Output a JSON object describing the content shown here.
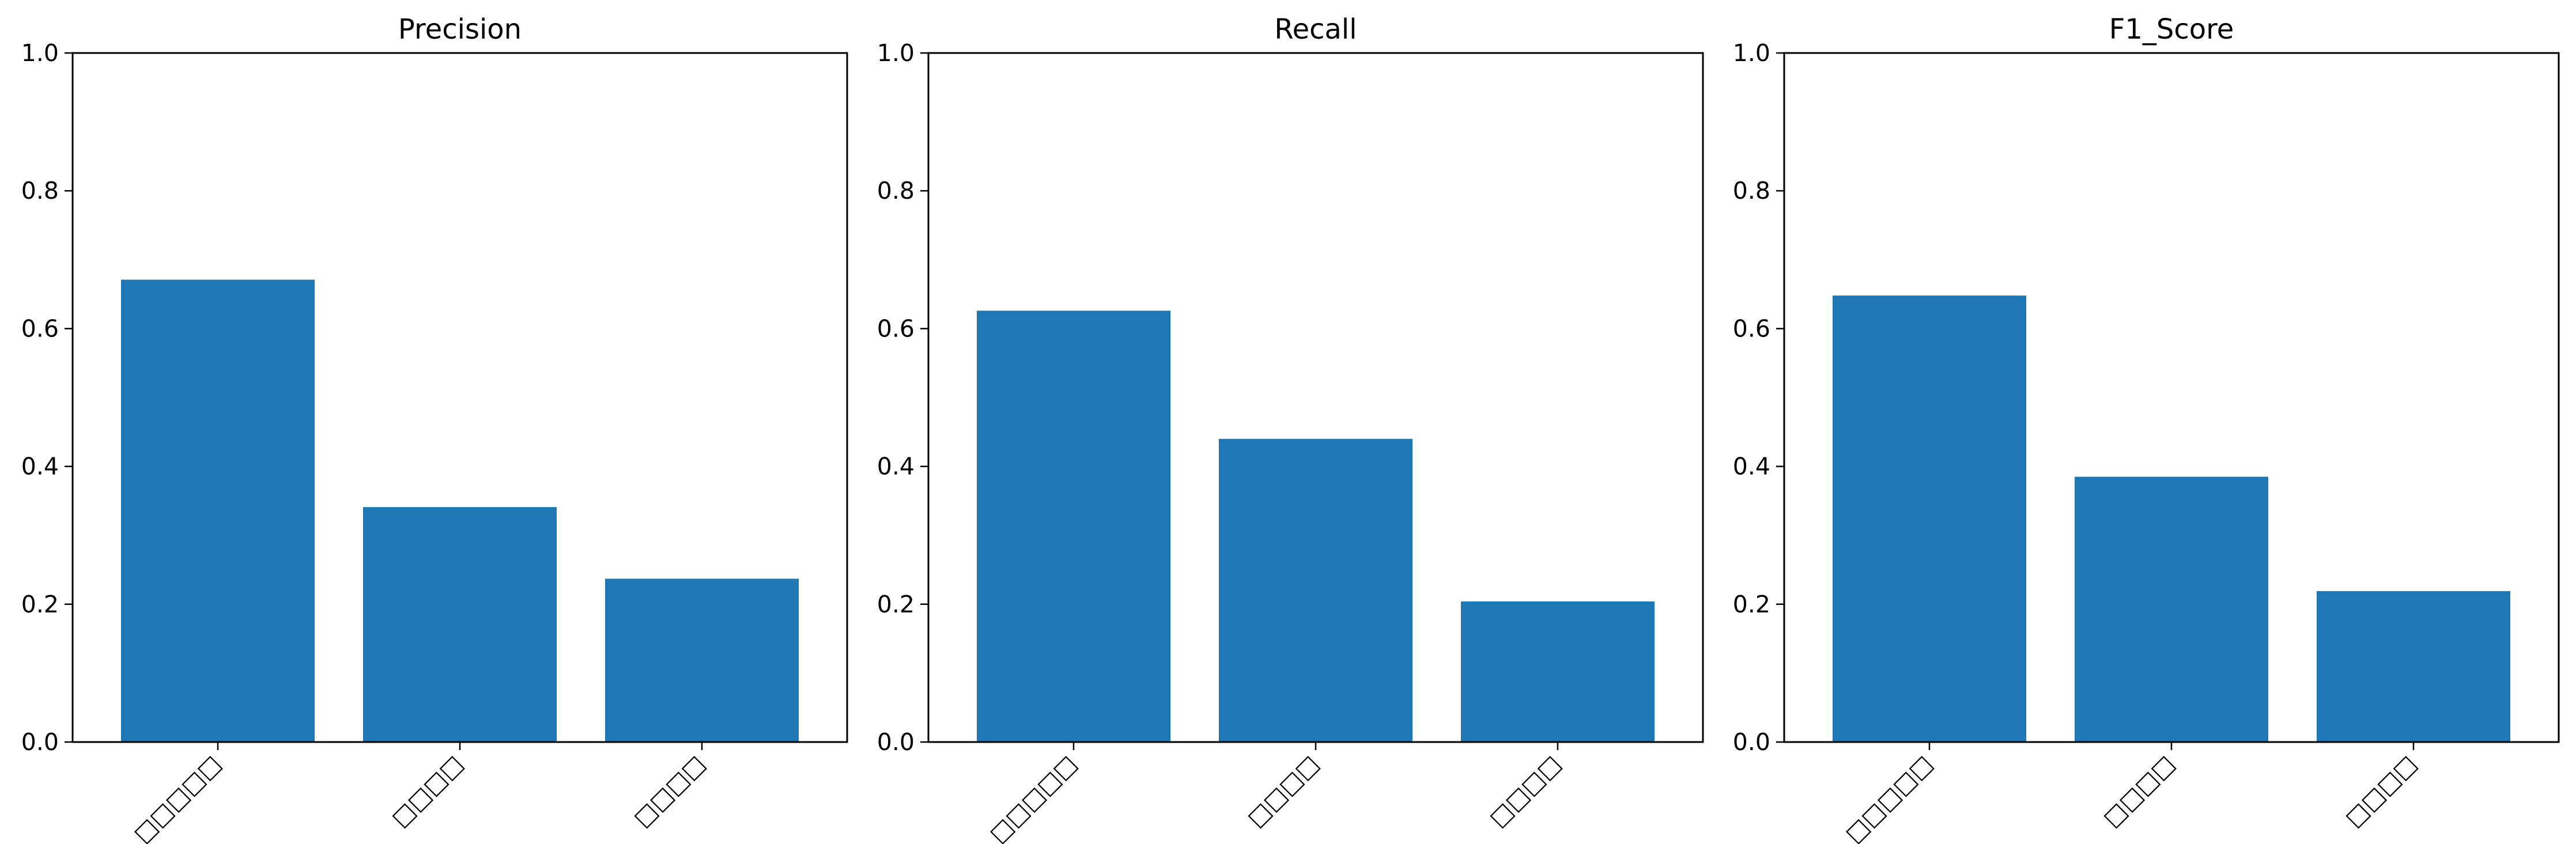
{
  "chart_data": [
    {
      "type": "bar",
      "title": "Precision",
      "categories": [
        "□□□□□",
        "□□□□",
        "□□□□"
      ],
      "values": [
        0.671,
        0.341,
        0.237
      ],
      "ylim": [
        0,
        1.0
      ],
      "yticks": [
        "0.0",
        "0.2",
        "0.4",
        "0.6",
        "0.8",
        "1.0"
      ],
      "color": "#1f77b4",
      "grid": false
    },
    {
      "type": "bar",
      "title": "Recall",
      "categories": [
        "□□□□□",
        "□□□□",
        "□□□□"
      ],
      "values": [
        0.626,
        0.44,
        0.204
      ],
      "ylim": [
        0,
        1.0
      ],
      "yticks": [
        "0.0",
        "0.2",
        "0.4",
        "0.6",
        "0.8",
        "1.0"
      ],
      "color": "#1f77b4",
      "grid": false
    },
    {
      "type": "bar",
      "title": "F1_Score",
      "categories": [
        "□□□□□",
        "□□□□",
        "□□□□"
      ],
      "values": [
        0.648,
        0.385,
        0.219
      ],
      "ylim": [
        0,
        1.0
      ],
      "yticks": [
        "0.0",
        "0.2",
        "0.4",
        "0.6",
        "0.8",
        "1.0"
      ],
      "color": "#1f77b4",
      "grid": false
    }
  ]
}
